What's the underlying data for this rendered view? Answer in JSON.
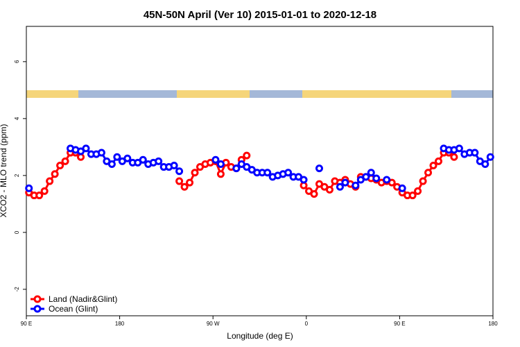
{
  "chart_data": {
    "type": "line",
    "title": "45N-50N April (Ver 10)   2015-01-01 to 2020-12-18",
    "x_label": "Longitude (deg E)",
    "y_label": "XCO2 - MLO trend (ppm)",
    "xlim": [
      90,
      540
    ],
    "ylim": [
      -2.93,
      7.24
    ],
    "xticks": [
      {
        "value": 90,
        "label": "90 E"
      },
      180,
      {
        "value": 270,
        "label": "90 W"
      },
      {
        "value": 360,
        "label": "0"
      },
      {
        "value": 450,
        "label": "90 E"
      },
      {
        "value": 540,
        "label": "180"
      }
    ],
    "yticks": [
      -2,
      0,
      2,
      4,
      6
    ],
    "legend": "bottom-left",
    "x": [
      92.5,
      97.5,
      102.5,
      107.5,
      112.5,
      117.5,
      122.5,
      127.5,
      132.5,
      137.5,
      142.5,
      147.5,
      152.5,
      157.5,
      162.5,
      167.5,
      172.5,
      177.5,
      182.5,
      187.5,
      192.5,
      197.5,
      202.5,
      207.5,
      212.5,
      217.5,
      222.5,
      227.5,
      232.5,
      237.5,
      242.5,
      247.5,
      252.5,
      257.5,
      262.5,
      267.5,
      272.5,
      277.5,
      282.5,
      287.5,
      292.5,
      297.5,
      302.5,
      307.5,
      312.5,
      317.5,
      322.5,
      327.5,
      332.5,
      337.5,
      342.5,
      347.5,
      352.5,
      357.5,
      362.5,
      367.5,
      372.5,
      377.5,
      382.5,
      387.5,
      392.5,
      397.5,
      402.5,
      407.5,
      412.5,
      417.5,
      422.5,
      427.5,
      432.5,
      437.5,
      442.5,
      447.5,
      452.5,
      457.5,
      462.5,
      467.5,
      472.5,
      477.5,
      482.5,
      487.5,
      492.5,
      497.5,
      502.5,
      507.5,
      512.5,
      517.5,
      522.5,
      527.5,
      532.5,
      537.5
    ],
    "series": [
      {
        "name": "Land (Nadir&Glint)",
        "color": "#ff0000",
        "values": [
          1.4,
          1.3,
          1.3,
          1.45,
          1.8,
          2.05,
          2.35,
          2.5,
          2.8,
          2.8,
          2.65,
          null,
          null,
          null,
          null,
          null,
          null,
          null,
          null,
          null,
          null,
          null,
          null,
          null,
          null,
          null,
          null,
          null,
          null,
          1.8,
          1.6,
          1.75,
          2.1,
          2.3,
          2.4,
          2.45,
          2.5,
          2.05,
          2.45,
          2.3,
          2.25,
          2.55,
          2.7,
          null,
          null,
          null,
          null,
          null,
          null,
          null,
          null,
          null,
          null,
          1.65,
          1.45,
          1.35,
          1.7,
          1.6,
          1.5,
          1.8,
          1.75,
          1.85,
          1.7,
          1.6,
          1.95,
          1.95,
          1.9,
          1.85,
          1.75,
          1.8,
          1.75,
          1.6,
          1.4,
          1.3,
          1.3,
          1.45,
          1.8,
          2.1,
          2.35,
          2.5,
          2.8,
          2.8,
          2.65,
          null,
          null,
          null,
          null,
          null,
          null,
          null
        ]
      },
      {
        "name": "Ocean (Glint)",
        "color": "#0000ff",
        "values": [
          1.55,
          null,
          null,
          null,
          null,
          null,
          null,
          null,
          2.95,
          2.9,
          2.85,
          2.95,
          2.75,
          2.75,
          2.8,
          2.5,
          2.4,
          2.65,
          2.5,
          2.6,
          2.45,
          2.45,
          2.55,
          2.4,
          2.45,
          2.5,
          2.3,
          2.3,
          2.35,
          2.15,
          null,
          null,
          null,
          null,
          null,
          null,
          2.55,
          2.4,
          null,
          null,
          2.25,
          2.4,
          2.3,
          2.2,
          2.1,
          2.1,
          2.1,
          1.95,
          2.0,
          2.05,
          2.1,
          1.95,
          1.95,
          1.85,
          null,
          null,
          2.25,
          null,
          null,
          null,
          1.6,
          1.75,
          null,
          1.65,
          1.85,
          1.95,
          2.1,
          1.9,
          null,
          1.85,
          null,
          null,
          1.55,
          null,
          null,
          null,
          null,
          null,
          null,
          null,
          2.95,
          2.9,
          2.9,
          2.95,
          2.75,
          2.8,
          2.8,
          2.5,
          2.4,
          2.65
        ]
      }
    ]
  }
}
